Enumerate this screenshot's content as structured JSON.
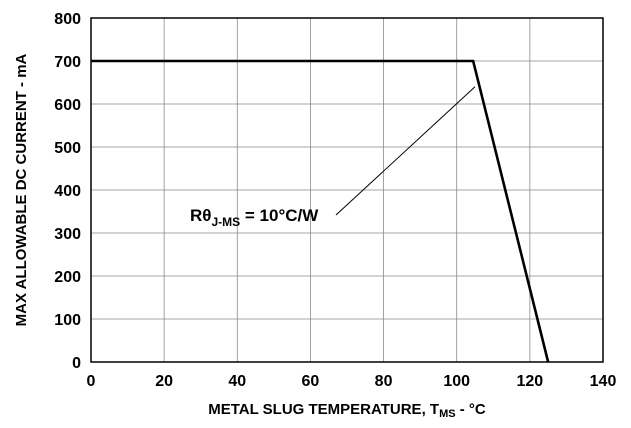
{
  "chart_data": {
    "type": "line",
    "title": "",
    "xlabel": {
      "main": "METAL SLUG TEMPERATURE, T",
      "sub": "MS",
      "suffix": " - °C"
    },
    "ylabel": "MAX ALLOWABLE DC CURRENT - mA",
    "xlim": [
      0,
      140
    ],
    "ylim": [
      0,
      800
    ],
    "x_ticks": [
      0,
      20,
      40,
      60,
      80,
      100,
      120,
      140
    ],
    "y_ticks": [
      0,
      100,
      200,
      300,
      400,
      500,
      600,
      700,
      800
    ],
    "grid": true,
    "series": [
      {
        "x": [
          0,
          104.5,
          125
        ],
        "y": [
          700,
          700,
          0
        ]
      }
    ],
    "annotations": [
      {
        "prefix": "R",
        "theta": "θ",
        "sub": "J-MS",
        "suffix": " = 10°C/W",
        "points_to": {
          "x": 105,
          "y": 640
        }
      }
    ]
  }
}
